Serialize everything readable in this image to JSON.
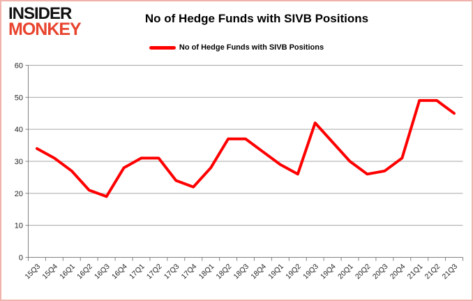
{
  "branding": {
    "logo_line1": "INSIDER",
    "logo_line2": "MONKEY"
  },
  "header": {
    "title": "No of Hedge Funds with SIVB Positions"
  },
  "legend": {
    "label": "No of Hedge Funds with SIVB Positions"
  },
  "colors": {
    "series_red": "#ff0000",
    "logo_red": "#e8432d",
    "grid": "#a6a6a6",
    "axis": "#808080",
    "tick_text": "#262626",
    "border_pink": "#f0b3ab"
  },
  "chart_data": {
    "type": "line",
    "title": "No of Hedge Funds with SIVB Positions",
    "xlabel": "",
    "ylabel": "",
    "ylim": [
      0,
      60
    ],
    "ytick_interval": 10,
    "grid": true,
    "legend_position": "top-center",
    "categories": [
      "15Q3",
      "15Q4",
      "16Q1",
      "16Q2",
      "16Q3",
      "16Q4",
      "17Q1",
      "17Q2",
      "17Q3",
      "17Q4",
      "18Q1",
      "18Q2",
      "18Q3",
      "18Q4",
      "19Q1",
      "19Q2",
      "19Q3",
      "19Q4",
      "20Q1",
      "20Q2",
      "20Q3",
      "20Q4",
      "21Q1",
      "21Q2",
      "21Q3"
    ],
    "series": [
      {
        "name": "No of Hedge Funds with SIVB Positions",
        "color": "#ff0000",
        "values": [
          34,
          31,
          27,
          21,
          19,
          28,
          31,
          31,
          24,
          22,
          28,
          37,
          37,
          33,
          29,
          26,
          42,
          36,
          30,
          26,
          27,
          31,
          49,
          49,
          45
        ]
      }
    ]
  }
}
